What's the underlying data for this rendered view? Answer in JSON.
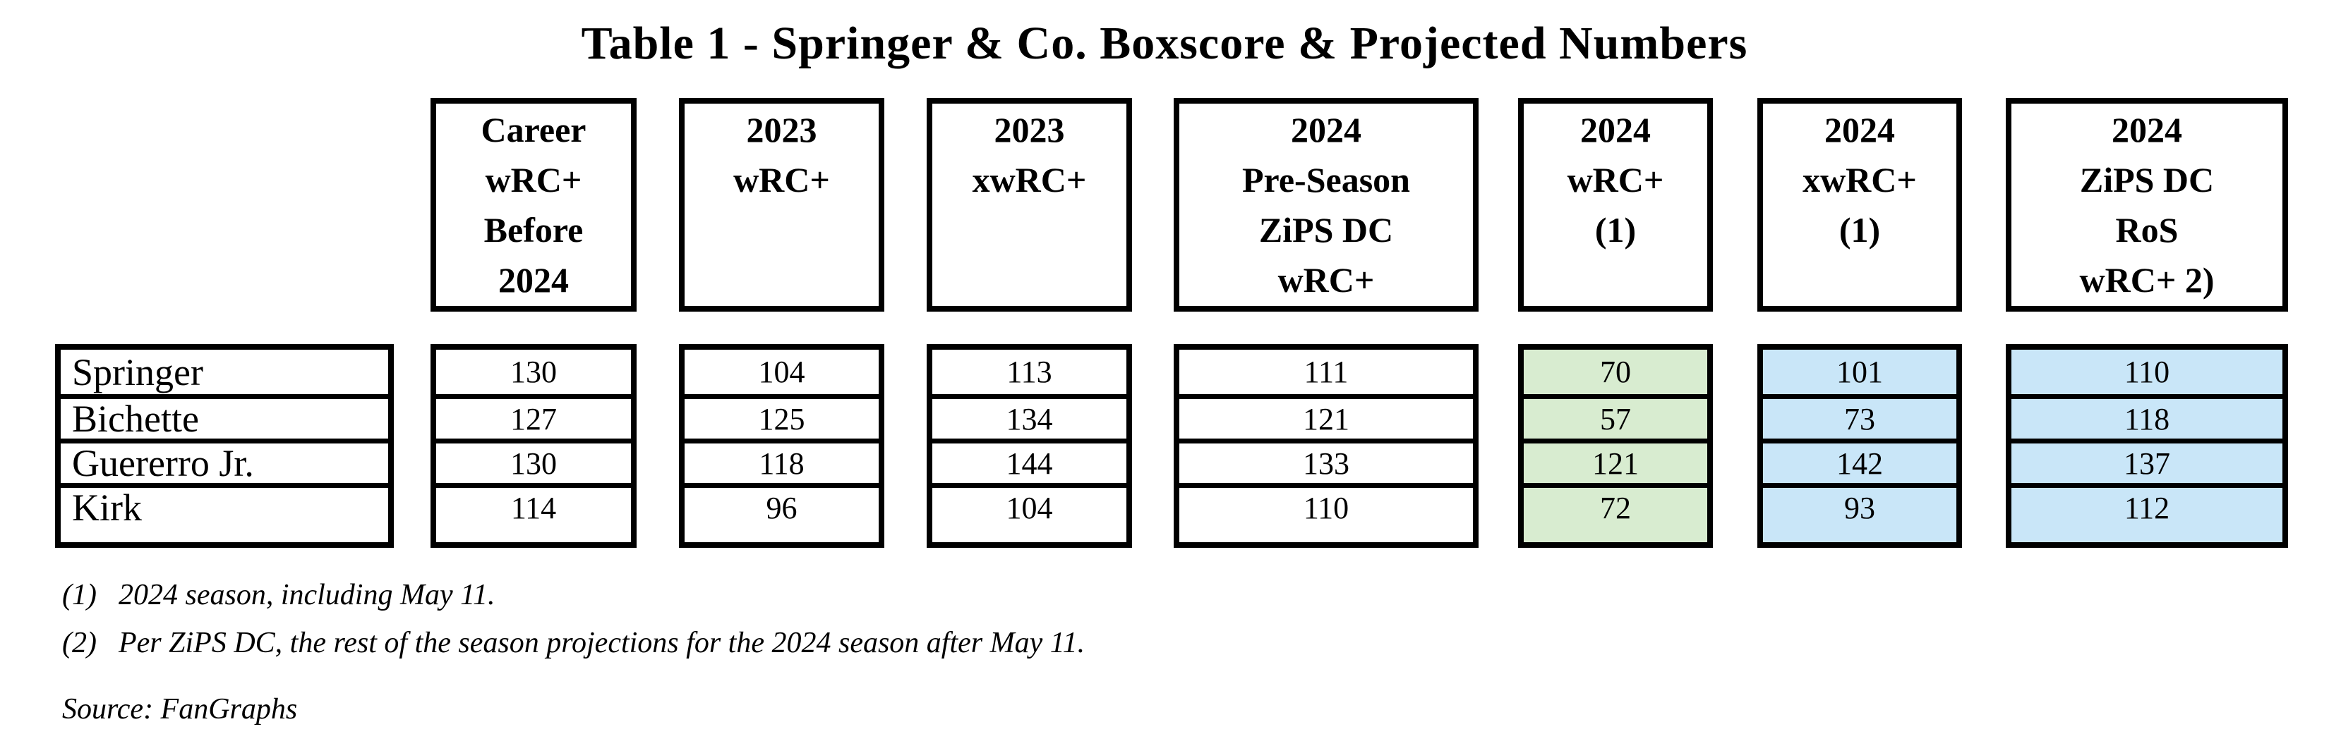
{
  "title": "Table 1 - Springer & Co. Boxscore & Projected Numbers",
  "colors": {
    "highlight_green": "#d8ecd0",
    "highlight_blue": "#c9e6f8",
    "border": "#000000",
    "background": "#ffffff"
  },
  "chart_data": {
    "type": "table",
    "title": "Table 1 - Springer & Co. Boxscore & Projected Numbers",
    "columns": [
      {
        "id": "career_wrc_before_2024",
        "header_lines": [
          "Career",
          "wRC+",
          "Before",
          "2024"
        ],
        "header_text": "Career wRC+ Before 2024",
        "bg": "#ffffff"
      },
      {
        "id": "wrc_2023",
        "header_lines": [
          "2023",
          "wRC+"
        ],
        "header_text": "2023 wRC+",
        "bg": "#ffffff"
      },
      {
        "id": "xwrc_2023",
        "header_lines": [
          "2023",
          "xwRC+"
        ],
        "header_text": "2023 xwRC+",
        "bg": "#ffffff"
      },
      {
        "id": "preseason_zips_dc_wrc_2024",
        "header_lines": [
          "2024",
          "Pre-Season",
          "ZiPS DC",
          "wRC+"
        ],
        "header_text": "2024 Pre-Season ZiPS DC wRC+",
        "bg": "#ffffff"
      },
      {
        "id": "wrc_2024",
        "header_lines": [
          "2024",
          "wRC+",
          "(1)"
        ],
        "header_text": "2024 wRC+ (1)",
        "bg": "#d8ecd0"
      },
      {
        "id": "xwrc_2024",
        "header_lines": [
          "2024",
          "xwRC+",
          "(1)"
        ],
        "header_text": "2024 xwRC+ (1)",
        "bg": "#c9e6f8"
      },
      {
        "id": "zips_dc_ros_wrc_2024",
        "header_lines": [
          "2024",
          "ZiPS DC",
          "RoS",
          "wRC+ 2)"
        ],
        "header_text": "2024 ZiPS DC RoS wRC+ 2)",
        "bg": "#c9e6f8"
      }
    ],
    "rows": [
      {
        "name": "Springer",
        "values": [
          130,
          104,
          113,
          111,
          70,
          101,
          110
        ]
      },
      {
        "name": "Bichette",
        "values": [
          127,
          125,
          134,
          121,
          57,
          73,
          118
        ]
      },
      {
        "name": "Guererro Jr.",
        "values": [
          130,
          118,
          144,
          133,
          121,
          142,
          137
        ]
      },
      {
        "name": "Kirk",
        "values": [
          114,
          96,
          104,
          110,
          72,
          93,
          112
        ]
      }
    ]
  },
  "footnotes": [
    {
      "marker": "(1)",
      "text": "2024 season, including May 11."
    },
    {
      "marker": "(2)",
      "text": "Per ZiPS DC, the rest of the season projections for the 2024 season after May 11."
    }
  ],
  "source": "Source: FanGraphs"
}
